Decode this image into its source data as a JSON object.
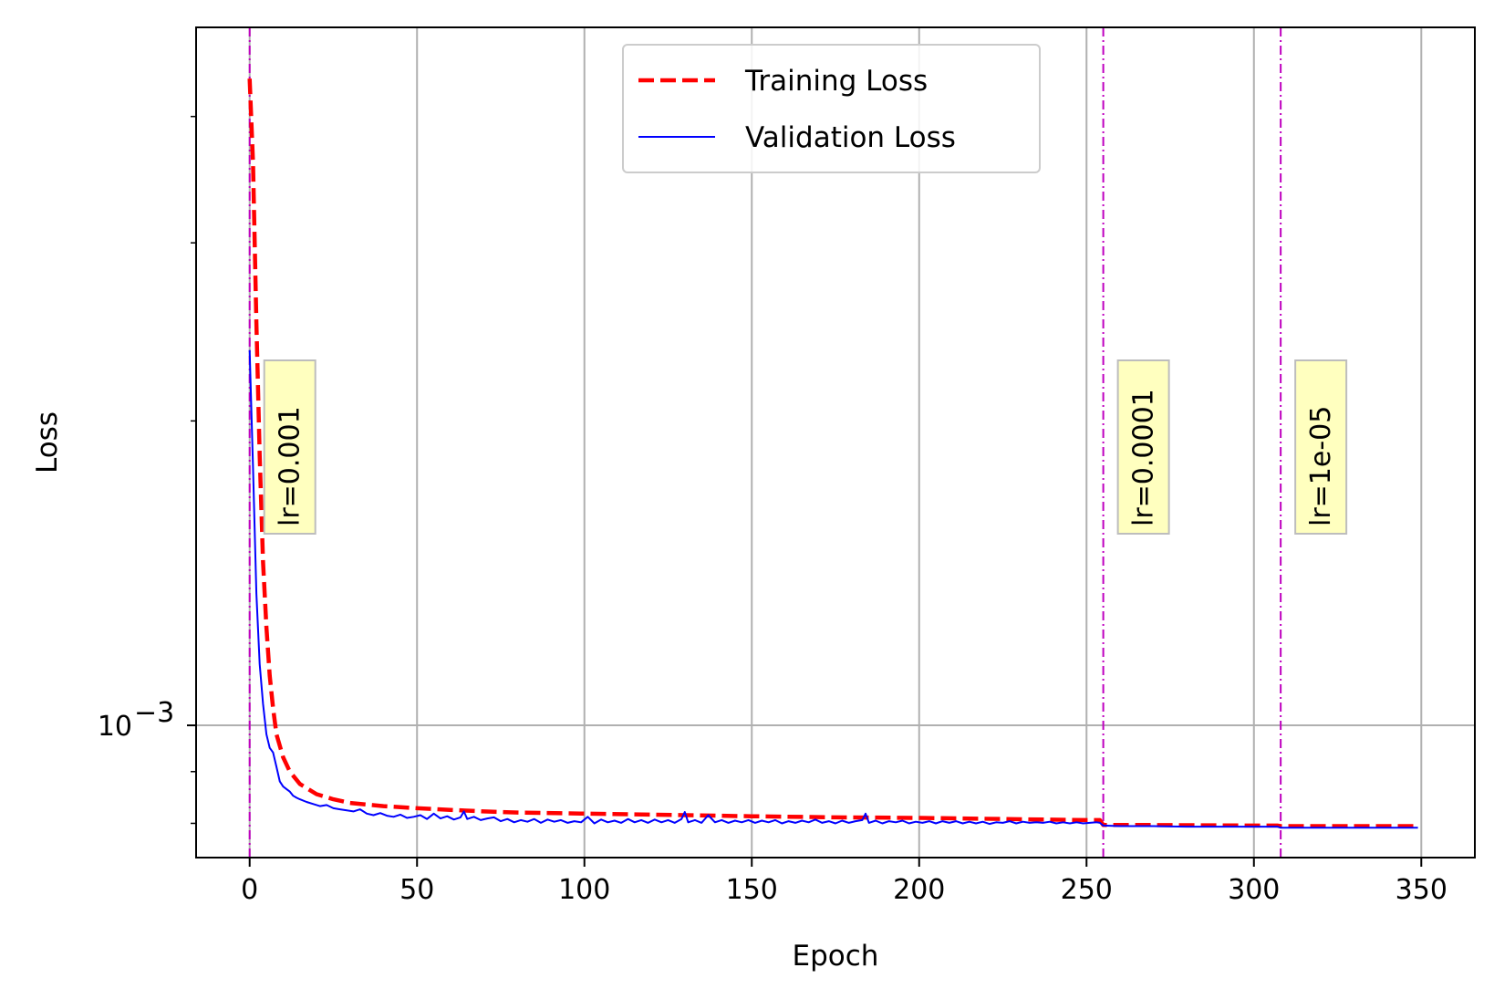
{
  "chart_data": {
    "type": "line",
    "title": "",
    "xlabel": "Epoch",
    "ylabel": "Loss",
    "xlim": [
      -16,
      366
    ],
    "ylim": [
      0.00074,
      0.0049
    ],
    "y_scale": "log",
    "x_ticks": [
      0,
      50,
      100,
      150,
      200,
      250,
      300,
      350
    ],
    "y_major_ticks": [
      {
        "value": 0.001,
        "base": "10",
        "exponent": "−3"
      }
    ],
    "y_minor_ticks": [
      0.0008,
      0.0009,
      0.002,
      0.003,
      0.004
    ],
    "grid": true,
    "legend": {
      "position": "upper-center",
      "entries": [
        "Training Loss",
        "Validation Loss"
      ]
    },
    "series": [
      {
        "name": "Training Loss",
        "color": "#ff0000",
        "style": "dashed",
        "x": [
          0,
          1,
          2,
          3,
          4,
          5,
          6,
          7,
          8,
          10,
          12,
          15,
          20,
          25,
          30,
          40,
          50,
          60,
          70,
          80,
          100,
          120,
          150,
          175,
          200,
          225,
          250,
          254,
          255,
          270,
          300,
          307,
          308,
          330,
          349
        ],
        "y": [
          0.00436,
          0.0036,
          0.0025,
          0.00185,
          0.00145,
          0.00125,
          0.00112,
          0.00104,
          0.00098,
          0.00093,
          0.0009,
          0.000875,
          0.000855,
          0.000845,
          0.000838,
          0.000832,
          0.000828,
          0.000825,
          0.000822,
          0.00082,
          0.000818,
          0.000816,
          0.000813,
          0.000811,
          0.00081,
          0.000808,
          0.000806,
          0.000806,
          0.000797,
          0.000797,
          0.000796,
          0.000796,
          0.000795,
          0.000795,
          0.000795
        ]
      },
      {
        "name": "Validation Loss",
        "color": "#0000ff",
        "style": "solid",
        "x": [
          0,
          1,
          2,
          3,
          4,
          5,
          6,
          7,
          8,
          9,
          10,
          11,
          12,
          13,
          14,
          15,
          17,
          19,
          21,
          23,
          25,
          27,
          29,
          31,
          33,
          35,
          37,
          39,
          41,
          43,
          45,
          47,
          49,
          51,
          53,
          55,
          57,
          59,
          61,
          63,
          64,
          65,
          67,
          69,
          71,
          73,
          75,
          77,
          79,
          81,
          83,
          85,
          87,
          89,
          91,
          93,
          95,
          97,
          99,
          101,
          103,
          105,
          107,
          109,
          111,
          113,
          115,
          117,
          119,
          121,
          123,
          125,
          127,
          129,
          130,
          131,
          133,
          135,
          137,
          139,
          141,
          143,
          145,
          147,
          149,
          151,
          153,
          155,
          157,
          159,
          161,
          163,
          165,
          167,
          169,
          171,
          173,
          175,
          177,
          179,
          181,
          183,
          184,
          185,
          187,
          189,
          191,
          193,
          195,
          197,
          199,
          201,
          203,
          205,
          207,
          209,
          211,
          213,
          215,
          217,
          219,
          221,
          223,
          225,
          227,
          229,
          231,
          233,
          235,
          237,
          239,
          241,
          243,
          245,
          247,
          249,
          251,
          253,
          254,
          255,
          260,
          270,
          280,
          290,
          300,
          305,
          307,
          308,
          320,
          335,
          349
        ],
        "y": [
          0.00235,
          0.0018,
          0.00135,
          0.00115,
          0.00105,
          0.00098,
          0.00095,
          0.00094,
          0.00091,
          0.00088,
          0.00087,
          0.000865,
          0.00086,
          0.000852,
          0.000848,
          0.000845,
          0.00084,
          0.000836,
          0.000832,
          0.000834,
          0.000828,
          0.000826,
          0.000824,
          0.000822,
          0.000826,
          0.000818,
          0.000815,
          0.000819,
          0.000814,
          0.000812,
          0.000816,
          0.00081,
          0.000812,
          0.000815,
          0.000808,
          0.000818,
          0.000809,
          0.000813,
          0.000807,
          0.000811,
          0.000822,
          0.000808,
          0.000812,
          0.000806,
          0.000809,
          0.000811,
          0.000804,
          0.000808,
          0.000802,
          0.000806,
          0.000803,
          0.000808,
          0.000801,
          0.000807,
          0.000803,
          0.000806,
          0.000801,
          0.000804,
          0.000802,
          0.000812,
          0.0008,
          0.000807,
          0.000802,
          0.000805,
          0.000801,
          0.000808,
          0.000802,
          0.000806,
          0.000801,
          0.000807,
          0.000802,
          0.000806,
          0.000801,
          0.000808,
          0.000821,
          0.000802,
          0.000806,
          0.000801,
          0.000815,
          0.000802,
          0.000806,
          0.000801,
          0.000805,
          0.000802,
          0.000806,
          0.000801,
          0.000805,
          0.000802,
          0.000806,
          0.0008,
          0.000804,
          0.000801,
          0.000805,
          0.000802,
          0.000807,
          0.000801,
          0.000804,
          0.0008,
          0.000805,
          0.000801,
          0.000804,
          0.000806,
          0.000818,
          0.000801,
          0.000805,
          0.0008,
          0.000804,
          0.000802,
          0.000805,
          0.0008,
          0.000803,
          0.000801,
          0.000804,
          0.0008,
          0.000804,
          0.000801,
          0.000804,
          0.0008,
          0.000803,
          0.0008,
          0.000803,
          0.000799,
          0.000802,
          0.000801,
          0.000804,
          0.0008,
          0.000803,
          0.000801,
          0.000802,
          0.000801,
          0.000803,
          0.0008,
          0.000802,
          0.0008,
          0.000802,
          0.0008,
          0.000801,
          0.000802,
          0.000801,
          0.000796,
          0.000795,
          0.000795,
          0.000794,
          0.000794,
          0.000794,
          0.000794,
          0.000794,
          0.000792,
          0.000792,
          0.000792,
          0.000792
        ]
      }
    ],
    "lr_markers": [
      {
        "x": 0,
        "label": "lr=0.001"
      },
      {
        "x": 255,
        "label": "lr=0.0001"
      },
      {
        "x": 308,
        "label": "lr=1e-05"
      }
    ],
    "marker_color": "#bf00bf",
    "annotation_box_color": "#ffffbf"
  }
}
